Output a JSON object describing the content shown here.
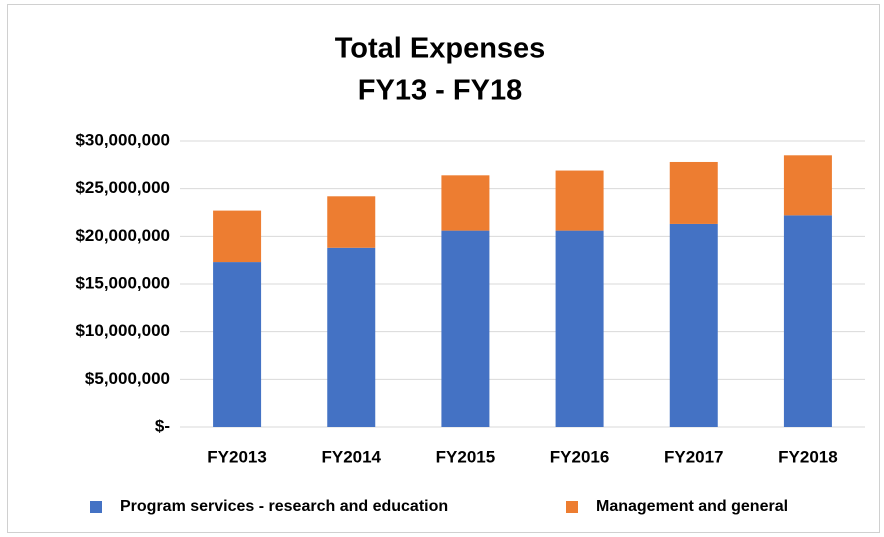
{
  "chart_data": {
    "type": "stacked_bar",
    "title": [
      "Total Expenses",
      "FY13 - FY18"
    ],
    "categories": [
      "FY2013",
      "FY2014",
      "FY2015",
      "FY2016",
      "FY2017",
      "FY2018"
    ],
    "series": [
      {
        "name": "Program services - research and education",
        "color": "#4472c4",
        "values": [
          17300000,
          18800000,
          20600000,
          20600000,
          21300000,
          22200000
        ]
      },
      {
        "name": "Management and general",
        "color": "#ed7d31",
        "values": [
          5400000,
          5400000,
          5800000,
          6300000,
          6500000,
          6300000
        ]
      }
    ],
    "ylim": [
      0,
      30000000
    ],
    "yticks": [
      {
        "value": 0,
        "label": "$-"
      },
      {
        "value": 5000000,
        "label": "$5,000,000"
      },
      {
        "value": 10000000,
        "label": "$10,000,000"
      },
      {
        "value": 15000000,
        "label": "$15,000,000"
      },
      {
        "value": 20000000,
        "label": "$20,000,000"
      },
      {
        "value": 25000000,
        "label": "$25,000,000"
      },
      {
        "value": 30000000,
        "label": "$30,000,000"
      }
    ],
    "grid": true,
    "legend": "bottom"
  }
}
